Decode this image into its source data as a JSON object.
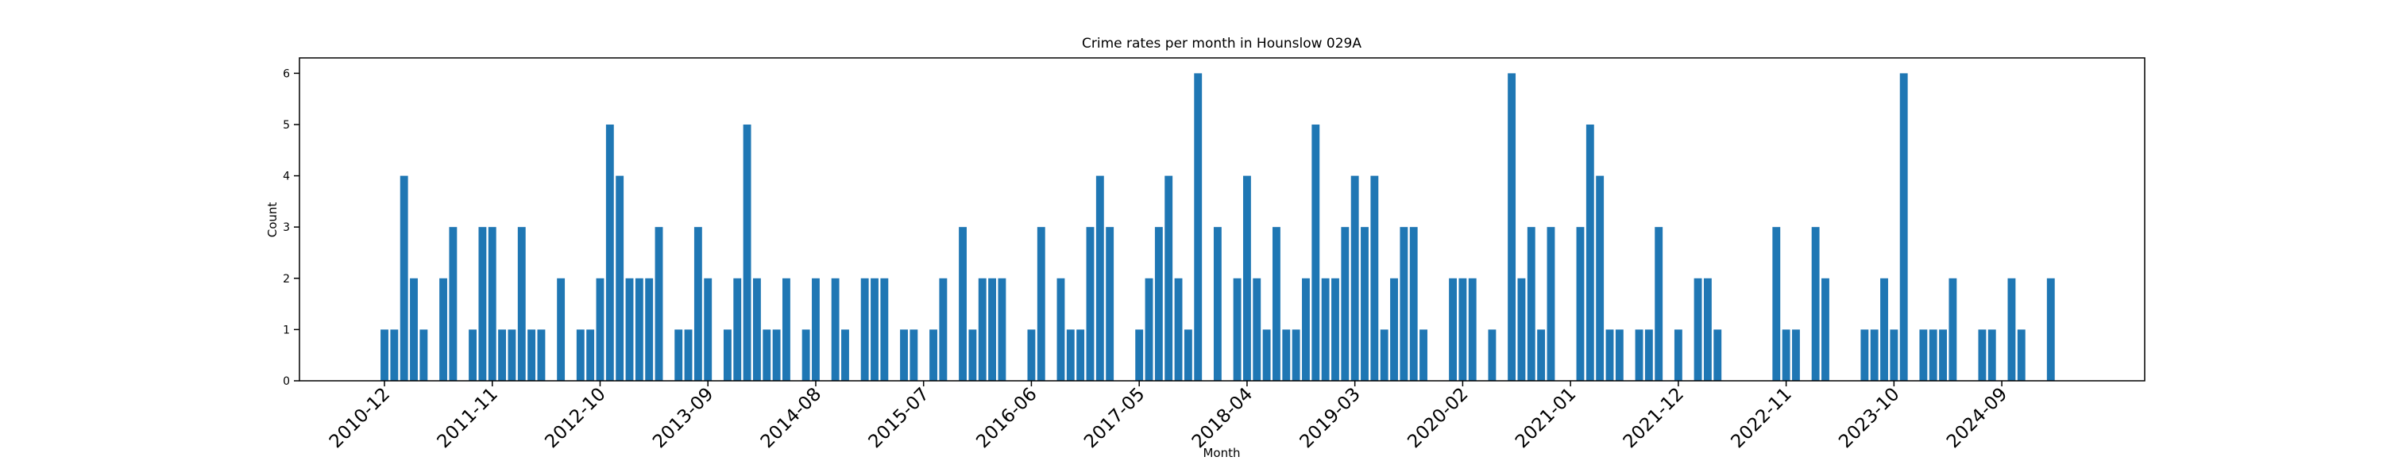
{
  "chart_data": {
    "type": "bar",
    "title": "Crime rates per month in Hounslow 029A",
    "x_label": "Month",
    "y_label": "Count",
    "color": "#1f77b4",
    "categories": [
      "2010-12",
      null,
      null,
      null,
      null,
      null,
      null,
      null,
      null,
      null,
      null,
      "2011-11",
      null,
      null,
      null,
      null,
      null,
      null,
      null,
      null,
      null,
      null,
      "2012-10",
      null,
      null,
      null,
      null,
      null,
      null,
      null,
      null,
      null,
      null,
      "2013-09",
      null,
      null,
      null,
      null,
      null,
      null,
      null,
      null,
      null,
      null,
      "2014-08",
      null,
      null,
      null,
      null,
      null,
      null,
      null,
      null,
      null,
      null,
      "2015-07",
      null,
      null,
      null,
      null,
      null,
      null,
      null,
      null,
      null,
      null,
      "2016-06",
      null,
      null,
      null,
      null,
      null,
      null,
      null,
      null,
      null,
      null,
      "2017-05",
      null,
      null,
      null,
      null,
      null,
      null,
      null,
      null,
      null,
      null,
      "2018-04",
      null,
      null,
      null,
      null,
      null,
      null,
      null,
      null,
      null,
      null,
      "2019-03",
      null,
      null,
      null,
      null,
      null,
      null,
      null,
      null,
      null,
      null,
      "2020-02",
      null,
      null,
      null,
      null,
      null,
      null,
      null,
      null,
      null,
      null,
      "2021-01",
      null,
      null,
      null,
      null,
      null,
      null,
      null,
      null,
      null,
      null,
      "2021-12",
      null,
      null,
      null,
      null,
      null,
      null,
      null,
      null,
      null,
      null,
      "2022-11",
      null,
      null,
      null,
      null,
      null,
      null,
      null,
      null,
      null,
      null,
      "2023-10",
      null,
      null,
      null,
      null,
      null,
      null,
      null,
      null,
      null,
      null,
      "2024-09",
      null,
      null,
      null,
      null,
      null
    ],
    "values": [
      1,
      1,
      4,
      2,
      1,
      null,
      2,
      3,
      null,
      1,
      3,
      3,
      1,
      1,
      3,
      1,
      1,
      null,
      2,
      null,
      1,
      1,
      2,
      5,
      4,
      2,
      2,
      2,
      3,
      null,
      1,
      1,
      3,
      2,
      null,
      1,
      2,
      5,
      2,
      1,
      1,
      2,
      null,
      1,
      2,
      null,
      2,
      1,
      null,
      2,
      2,
      2,
      null,
      1,
      1,
      null,
      1,
      2,
      null,
      3,
      1,
      2,
      2,
      2,
      null,
      null,
      1,
      3,
      null,
      2,
      1,
      1,
      3,
      4,
      3,
      null,
      null,
      1,
      2,
      3,
      4,
      2,
      1,
      6,
      null,
      3,
      null,
      2,
      4,
      2,
      1,
      3,
      1,
      1,
      2,
      5,
      2,
      2,
      3,
      4,
      3,
      4,
      1,
      2,
      3,
      3,
      1,
      null,
      null,
      2,
      2,
      2,
      null,
      1,
      null,
      6,
      2,
      3,
      1,
      3,
      null,
      null,
      3,
      5,
      4,
      1,
      1,
      null,
      1,
      1,
      3,
      null,
      1,
      null,
      2,
      2,
      1,
      null,
      null,
      null,
      null,
      null,
      3,
      1,
      1,
      null,
      3,
      2,
      null,
      null,
      null,
      1,
      1,
      2,
      1,
      6,
      null,
      1,
      1,
      1,
      2,
      null,
      null,
      1,
      1,
      null,
      2,
      1,
      null,
      null,
      2
    ],
    "ylim": [
      0,
      6.3
    ],
    "yticks": [
      0,
      1,
      2,
      3,
      4,
      5,
      6
    ],
    "grid": false
  }
}
